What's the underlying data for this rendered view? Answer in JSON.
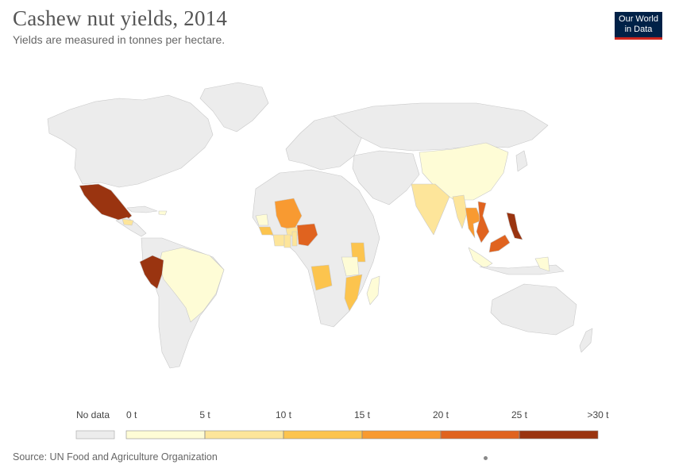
{
  "header": {
    "title": "Cashew nut yields, 2014",
    "subtitle": "Yields are measured in tonnes per hectare."
  },
  "logo": {
    "line1": "Our World",
    "line2": "in Data"
  },
  "footer": {
    "source": "Source: UN Food and Agriculture Organization"
  },
  "colors": {
    "no_data": "#ececec",
    "border": "#c8c8c8",
    "bins": [
      "#fefcd6",
      "#fde59a",
      "#fcc44e",
      "#f89a31",
      "#e0631f",
      "#9a3410"
    ]
  },
  "legend": {
    "no_data_label": "No data",
    "tick_labels": [
      "0 t",
      "5 t",
      "10 t",
      "15 t",
      "20 t",
      "25 t",
      ">30 t"
    ]
  },
  "map_data": {
    "metric": "Cashew nut yield",
    "year": 2014,
    "unit": "tonnes per hectare",
    "bin_edges": [
      0,
      5,
      10,
      15,
      20,
      25,
      30
    ],
    "countries": [
      {
        "name": "Mexico",
        "bin": 5
      },
      {
        "name": "Peru",
        "bin": 5
      },
      {
        "name": "Philippines",
        "bin": 5
      },
      {
        "name": "Vietnam",
        "bin": 4
      },
      {
        "name": "Nigeria",
        "bin": 4
      },
      {
        "name": "Malaysia",
        "bin": 4
      },
      {
        "name": "Mali",
        "bin": 3
      },
      {
        "name": "Thailand",
        "bin": 3
      },
      {
        "name": "Kenya",
        "bin": 2
      },
      {
        "name": "Angola",
        "bin": 2
      },
      {
        "name": "Mozambique",
        "bin": 2
      },
      {
        "name": "India",
        "bin": 1
      },
      {
        "name": "Myanmar",
        "bin": 1
      },
      {
        "name": "Honduras",
        "bin": 1
      },
      {
        "name": "Guinea",
        "bin": 2
      },
      {
        "name": "Burkina Faso",
        "bin": 1
      },
      {
        "name": "Côte d'Ivoire",
        "bin": 1
      },
      {
        "name": "Ghana",
        "bin": 1
      },
      {
        "name": "Benin",
        "bin": 1
      },
      {
        "name": "China",
        "bin": 0
      },
      {
        "name": "Brazil",
        "bin": 0
      },
      {
        "name": "Tanzania",
        "bin": 0
      },
      {
        "name": "Madagascar",
        "bin": 0
      },
      {
        "name": "Indonesia",
        "bin": 0
      },
      {
        "name": "Senegal",
        "bin": 0
      },
      {
        "name": "Timor-Leste",
        "bin": 0
      },
      {
        "name": "Dominican Republic",
        "bin": 0
      }
    ]
  }
}
